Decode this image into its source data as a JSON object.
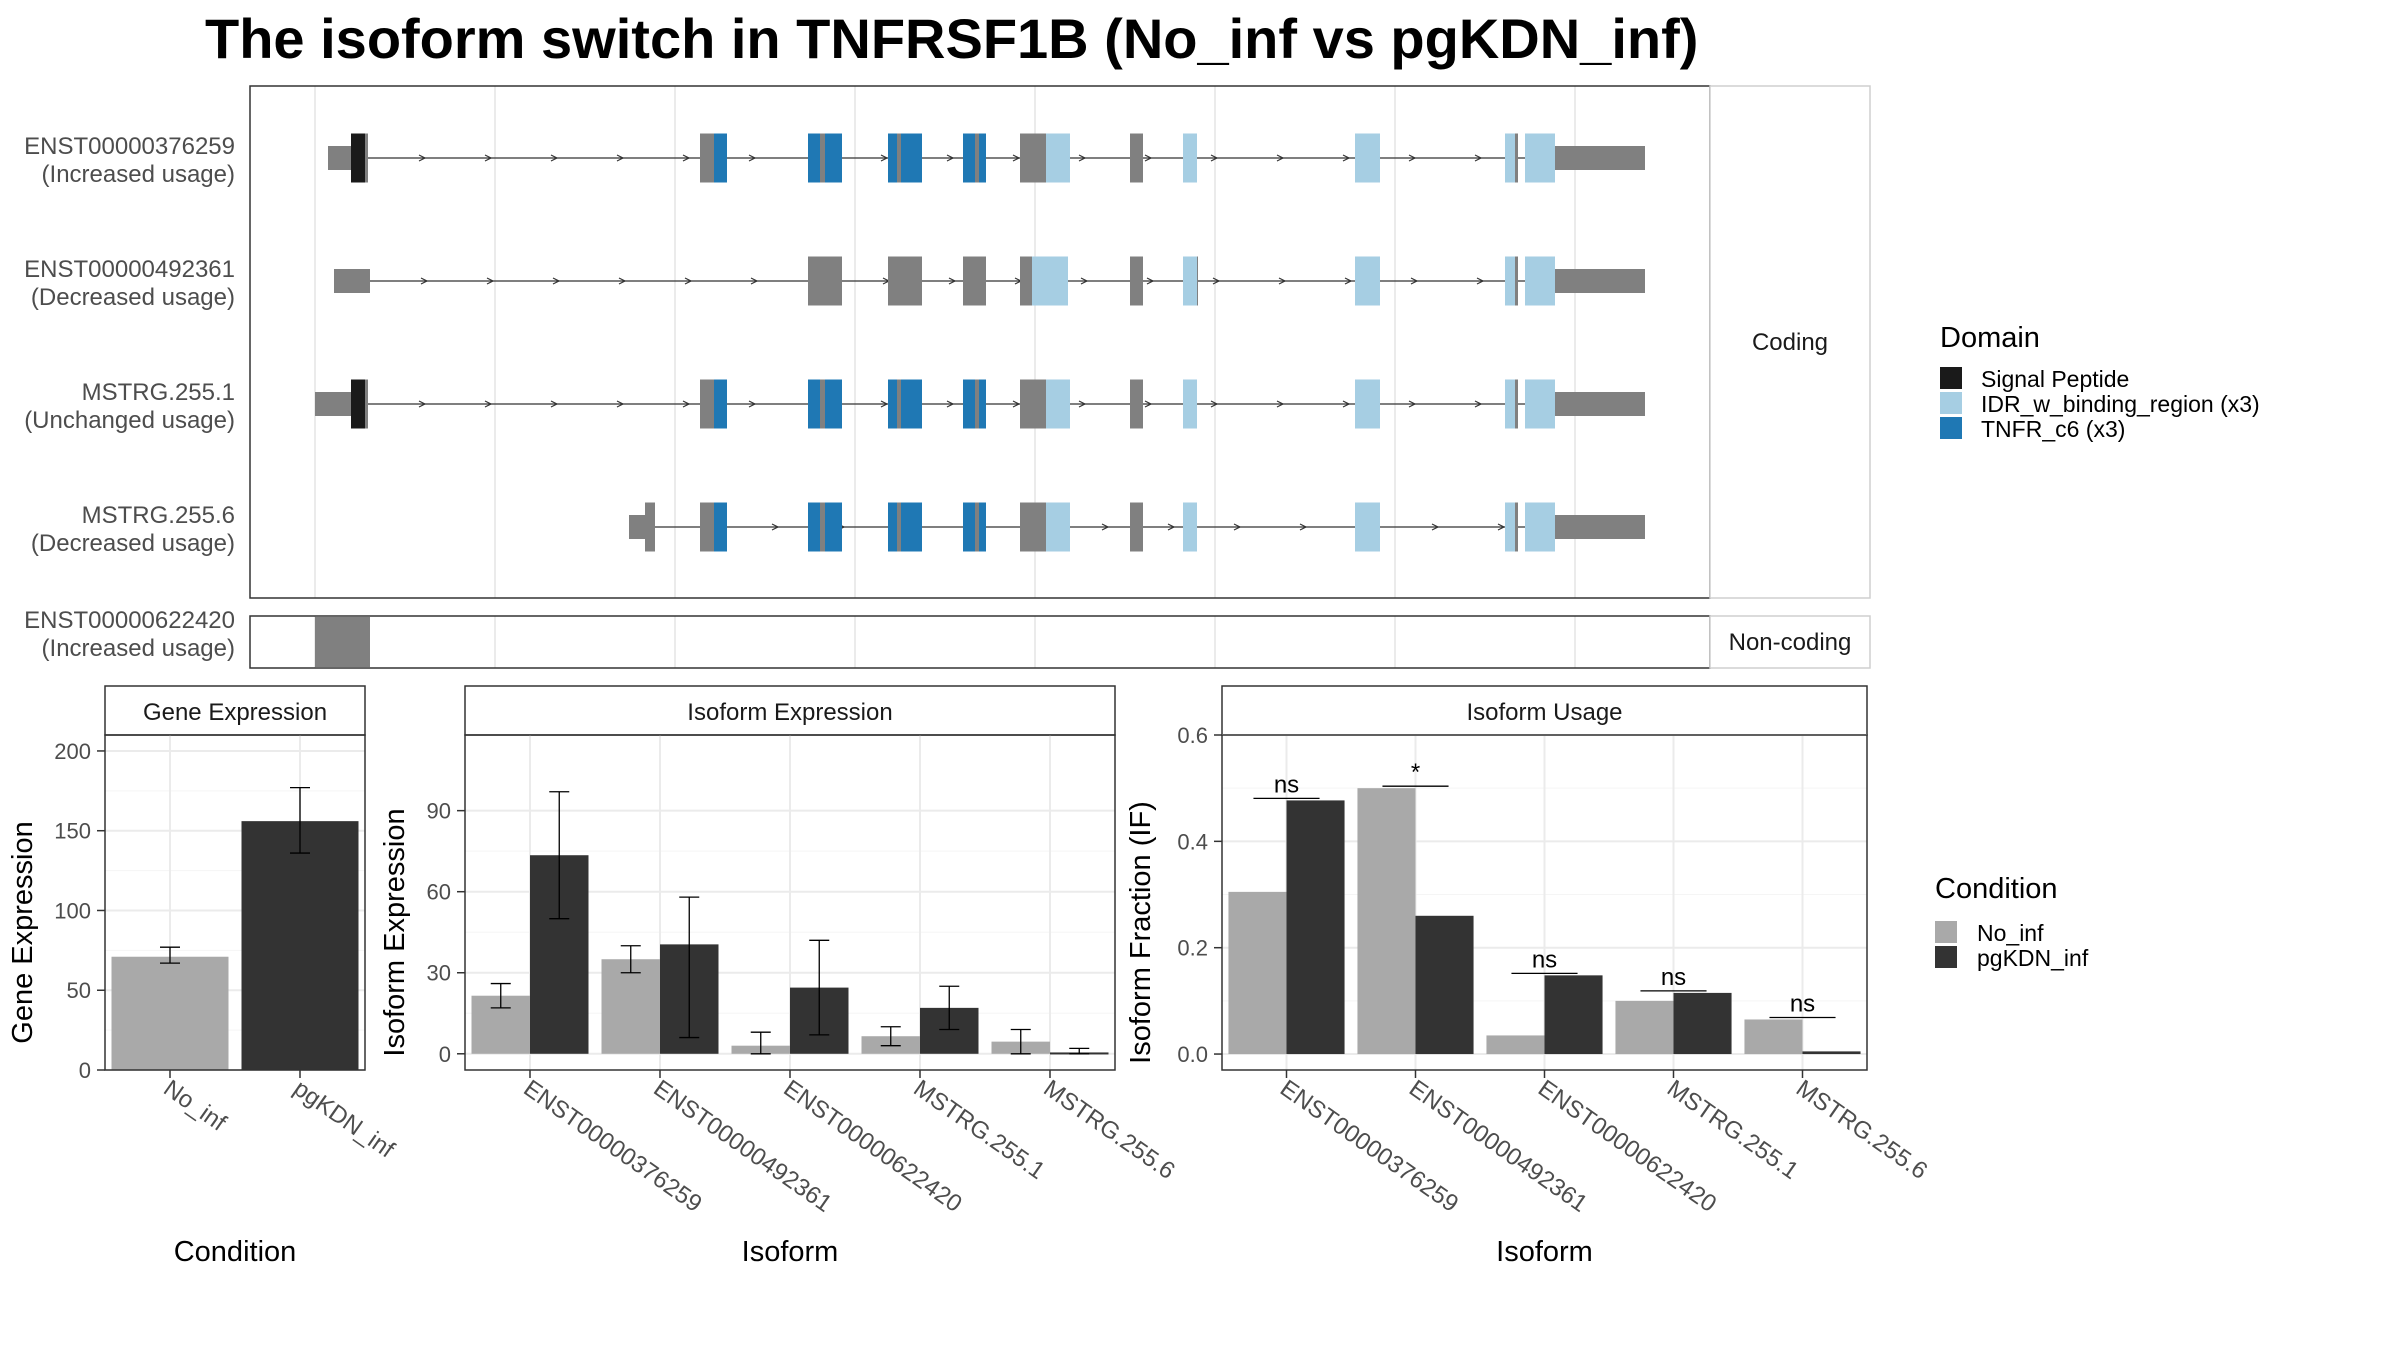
{
  "title": "The isoform switch in TNFRSF1B (No_inf vs pgKDN_inf)",
  "colors": {
    "exon": "#808080",
    "signal_peptide": "#1a1a1a",
    "idr": "#a6cee3",
    "tnfr": "#1f78b4",
    "no_inf": "#a9a9a9",
    "pgkdn_inf": "#333333"
  },
  "structure": {
    "facets": [
      "Coding",
      "Non-coding"
    ],
    "coding": [
      {
        "id": "ENST00000376259",
        "note": "(Increased usage)"
      },
      {
        "id": "ENST00000492361",
        "note": "(Decreased usage)"
      },
      {
        "id": "MSTRG.255.1",
        "note": "(Unchanged usage)"
      },
      {
        "id": "MSTRG.255.6",
        "note": "(Decreased usage)"
      }
    ],
    "noncoding": [
      {
        "id": "ENST00000622420",
        "note": "(Increased usage)"
      }
    ]
  },
  "legend_domain": {
    "title": "Domain",
    "items": [
      {
        "label": "Signal Peptide",
        "color": "#1a1a1a"
      },
      {
        "label": "IDR_w_binding_region (x3)",
        "color": "#a6cee3"
      },
      {
        "label": "TNFR_c6 (x3)",
        "color": "#1f78b4"
      }
    ]
  },
  "legend_condition": {
    "title": "Condition",
    "items": [
      {
        "label": "No_inf",
        "color": "#a9a9a9"
      },
      {
        "label": "pgKDN_inf",
        "color": "#333333"
      }
    ]
  },
  "chart_data": [
    {
      "type": "bar",
      "title": "Gene Expression",
      "xlabel": "Condition",
      "ylabel": "Gene Expression",
      "categories": [
        "No_inf",
        "pgKDN_inf"
      ],
      "values": [
        71,
        156
      ],
      "error": [
        [
          67,
          77
        ],
        [
          136,
          177
        ]
      ],
      "ylim": [
        0,
        210
      ],
      "yticks": [
        0,
        50,
        100,
        150,
        200
      ]
    },
    {
      "type": "bar",
      "title": "Isoform Expression",
      "xlabel": "Isoform",
      "ylabel": "Isoform Expression",
      "categories": [
        "ENST00000376259",
        "ENST00000492361",
        "ENST00000622420",
        "MSTRG.255.1",
        "MSTRG.255.6"
      ],
      "series": [
        {
          "name": "No_inf",
          "values": [
            21.5,
            35,
            3,
            6.5,
            4.5
          ],
          "error": [
            [
              17,
              26
            ],
            [
              30,
              40
            ],
            [
              0,
              8
            ],
            [
              3,
              10
            ],
            [
              0,
              9
            ]
          ]
        },
        {
          "name": "pgKDN_inf",
          "values": [
            73.5,
            40.5,
            24.5,
            17,
            0.5
          ],
          "error": [
            [
              50,
              97
            ],
            [
              6,
              58
            ],
            [
              7,
              42
            ],
            [
              9,
              25
            ],
            [
              0,
              2
            ]
          ]
        }
      ],
      "ylim": [
        -6,
        118
      ],
      "yticks": [
        0,
        30,
        60,
        90
      ]
    },
    {
      "type": "bar",
      "title": "Isoform Usage",
      "xlabel": "Isoform",
      "ylabel": "Isoform Fraction (IF)",
      "categories": [
        "ENST00000376259",
        "ENST00000492361",
        "ENST00000622420",
        "MSTRG.255.1",
        "MSTRG.255.6"
      ],
      "series": [
        {
          "name": "No_inf",
          "values": [
            0.305,
            0.5,
            0.035,
            0.1,
            0.065
          ]
        },
        {
          "name": "pgKDN_inf",
          "values": [
            0.477,
            0.26,
            0.148,
            0.115,
            0.005
          ]
        }
      ],
      "significance": [
        "ns",
        "*",
        "ns",
        "ns",
        "ns"
      ],
      "ylim": [
        -0.03,
        0.6
      ],
      "yticks": [
        0.0,
        0.2,
        0.4,
        0.6
      ]
    }
  ]
}
